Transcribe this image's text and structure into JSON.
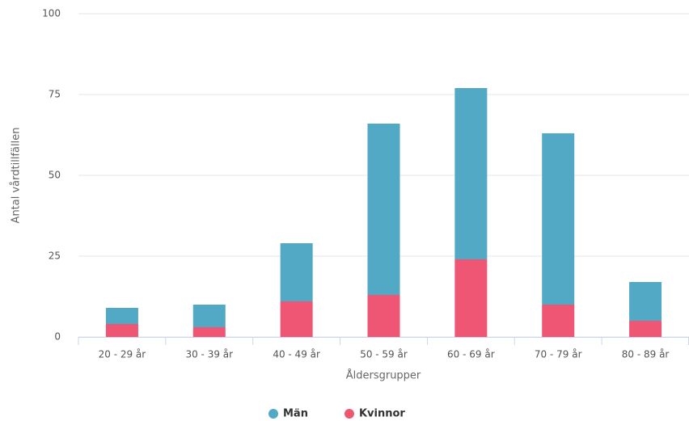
{
  "chart_data": {
    "type": "stacked_bar",
    "y_axis_label": "Antal vårdtillfällen",
    "x_axis_label": "Åldersgrupper",
    "categories": [
      "20 - 29 år",
      "30 - 39 år",
      "40 - 49 år",
      "50 - 59 år",
      "60 - 69 år",
      "70 - 79 år",
      "80 - 89 år"
    ],
    "series": [
      {
        "name": "Män",
        "color": "#51a9c6",
        "values": [
          5,
          7,
          18,
          53,
          53,
          53,
          12
        ]
      },
      {
        "name": "Kvinnor",
        "color": "#ee5674",
        "values": [
          4,
          3,
          11,
          13,
          24,
          10,
          5
        ]
      }
    ],
    "ylim": [
      0,
      100
    ],
    "yticks": [
      0,
      25,
      50,
      75,
      100
    ],
    "grid": true
  }
}
